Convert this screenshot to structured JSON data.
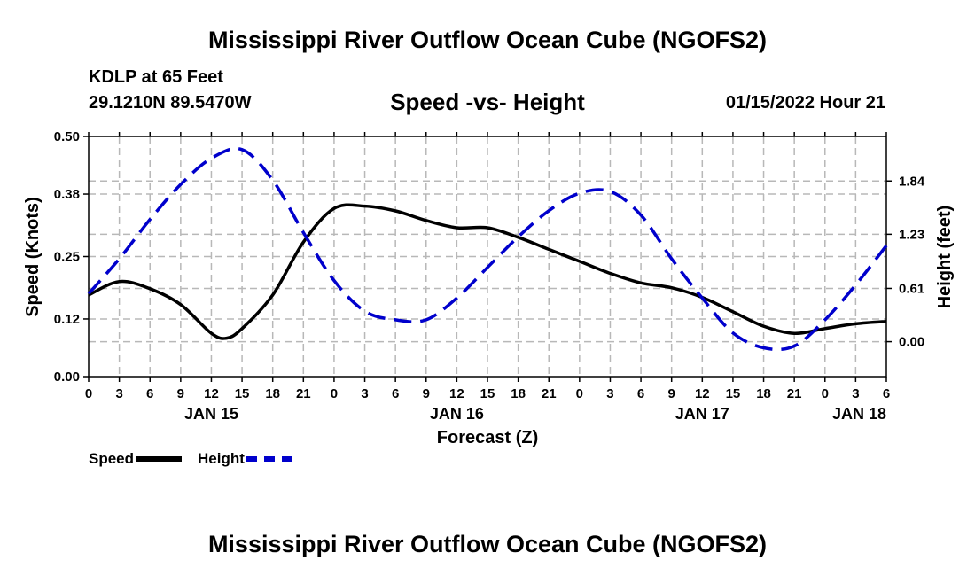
{
  "page": {
    "title": "Mississippi River Outflow Ocean Cube (NGOFS2)",
    "station": "KDLP at 65 Feet",
    "coords": "29.1210N  89.5470W",
    "subtitle": "Speed -vs- Height",
    "timestamp": "01/15/2022 Hour 21",
    "footer_title": "Mississippi River Outflow Ocean Cube (NGOFS2)"
  },
  "legend": {
    "speed_label": "Speed",
    "height_label": "Height"
  },
  "chart_data": {
    "type": "line",
    "title": "Speed -vs- Height",
    "xlabel": "Forecast (Z)",
    "ylabel": "Speed (Knots)",
    "y2label": "Height (feet)",
    "x_range_hours": [
      0,
      78
    ],
    "x_ticks": [
      {
        "h": 0,
        "label": "0"
      },
      {
        "h": 3,
        "label": "3"
      },
      {
        "h": 6,
        "label": "6"
      },
      {
        "h": 9,
        "label": "9"
      },
      {
        "h": 12,
        "label": "12"
      },
      {
        "h": 15,
        "label": "15"
      },
      {
        "h": 18,
        "label": "18"
      },
      {
        "h": 21,
        "label": "21"
      },
      {
        "h": 24,
        "label": "0"
      },
      {
        "h": 27,
        "label": "3"
      },
      {
        "h": 30,
        "label": "6"
      },
      {
        "h": 33,
        "label": "9"
      },
      {
        "h": 36,
        "label": "12"
      },
      {
        "h": 39,
        "label": "15"
      },
      {
        "h": 42,
        "label": "18"
      },
      {
        "h": 45,
        "label": "21"
      },
      {
        "h": 48,
        "label": "0"
      },
      {
        "h": 51,
        "label": "3"
      },
      {
        "h": 54,
        "label": "6"
      },
      {
        "h": 57,
        "label": "9"
      },
      {
        "h": 60,
        "label": "12"
      },
      {
        "h": 63,
        "label": "15"
      },
      {
        "h": 66,
        "label": "18"
      },
      {
        "h": 69,
        "label": "21"
      },
      {
        "h": 72,
        "label": "0"
      },
      {
        "h": 75,
        "label": "3"
      },
      {
        "h": 78,
        "label": "6"
      }
    ],
    "day_labels": [
      {
        "h": 12,
        "label": "JAN 15"
      },
      {
        "h": 36,
        "label": "JAN 16"
      },
      {
        "h": 60,
        "label": "JAN 17"
      },
      {
        "h": 78,
        "label": "JAN 18"
      }
    ],
    "y_left": {
      "min": 0,
      "max": 0.5,
      "ticks": [
        "0.00",
        "0.12",
        "0.25",
        "0.38",
        "0.50"
      ]
    },
    "y_right": {
      "min": -0.4,
      "max": 2.35,
      "ticks": [
        "0.00",
        "0.61",
        "1.23",
        "1.84"
      ]
    },
    "series": [
      {
        "name": "Speed",
        "axis": "left",
        "color": "#000000",
        "dash": "solid",
        "x": [
          0,
          3,
          6,
          9,
          12,
          13.5,
          15,
          18,
          21,
          24,
          27,
          30,
          33,
          36,
          39,
          42,
          45,
          48,
          51,
          54,
          57,
          60,
          63,
          66,
          69,
          72,
          75,
          78
        ],
        "values": [
          0.17,
          0.198,
          0.183,
          0.15,
          0.09,
          0.08,
          0.1,
          0.17,
          0.28,
          0.35,
          0.355,
          0.345,
          0.325,
          0.31,
          0.31,
          0.29,
          0.265,
          0.24,
          0.215,
          0.195,
          0.185,
          0.165,
          0.135,
          0.105,
          0.09,
          0.1,
          0.11,
          0.115
        ]
      },
      {
        "name": "Height",
        "axis": "right",
        "color": "#0000cc",
        "dash": "dashed",
        "x": [
          0,
          3,
          6,
          9,
          12,
          15,
          18,
          21,
          24,
          27,
          30,
          33,
          36,
          39,
          42,
          45,
          48,
          51,
          54,
          57,
          60,
          63,
          66,
          69,
          72,
          75,
          78
        ],
        "values": [
          0.55,
          0.95,
          1.4,
          1.8,
          2.1,
          2.2,
          1.85,
          1.25,
          0.7,
          0.35,
          0.25,
          0.25,
          0.5,
          0.85,
          1.2,
          1.5,
          1.7,
          1.72,
          1.45,
          0.95,
          0.5,
          0.1,
          -0.07,
          -0.05,
          0.25,
          0.65,
          1.1
        ]
      }
    ]
  }
}
